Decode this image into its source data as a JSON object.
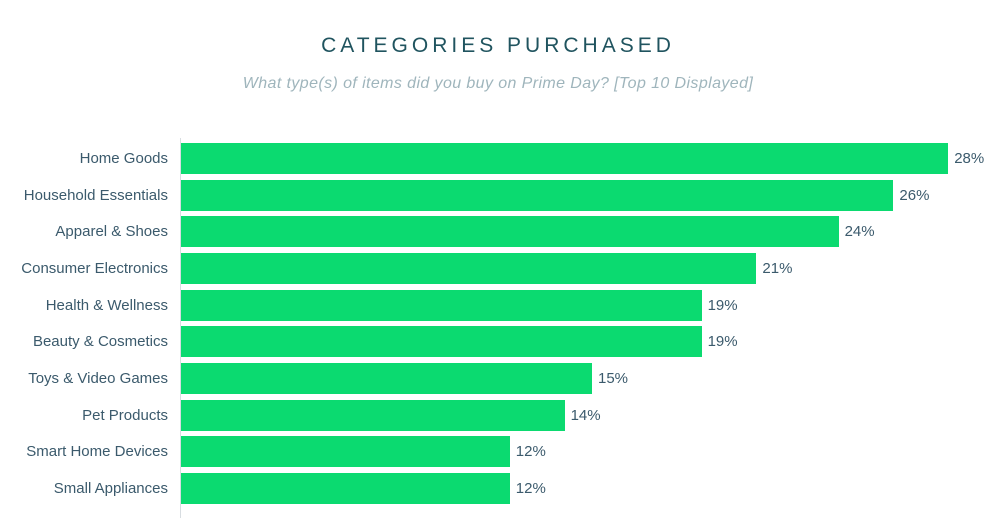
{
  "header": {
    "title": "CATEGORIES PURCHASED",
    "subtitle": "What type(s) of items did you buy on Prime Day? [Top 10 Displayed]"
  },
  "chart_data": {
    "type": "bar",
    "orientation": "horizontal",
    "title": "CATEGORIES PURCHASED",
    "subtitle": "What type(s) of items did you buy on Prime Day? [Top 10 Displayed]",
    "categories": [
      "Home Goods",
      "Household Essentials",
      "Apparel & Shoes",
      "Consumer Electronics",
      "Health & Wellness",
      "Beauty & Cosmetics",
      "Toys & Video Games",
      "Pet Products",
      "Smart Home Devices",
      "Small Appliances"
    ],
    "values": [
      28,
      26,
      24,
      21,
      19,
      19,
      15,
      14,
      12,
      12
    ],
    "value_labels": [
      "28%",
      "26%",
      "24%",
      "21%",
      "19%",
      "19%",
      "15%",
      "14%",
      "12%",
      "12%"
    ],
    "xlabel": "",
    "ylabel": "",
    "xlim": [
      0,
      29.5
    ],
    "grid": false,
    "legend": false,
    "data_labels_position": "outside-end"
  },
  "colors": {
    "bar": "#0bda70",
    "title": "#20545f",
    "subtitle": "#9fb5bc",
    "category_label": "#3b5a6c",
    "value_label": "#3b5a6c",
    "axis_line": "#d8dde1",
    "background": "#ffffff"
  }
}
